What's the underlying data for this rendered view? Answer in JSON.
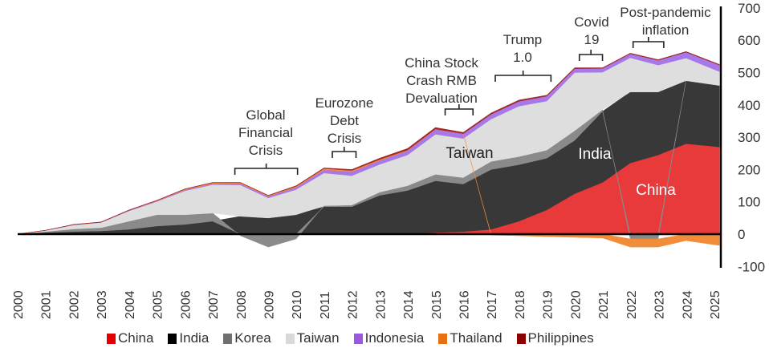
{
  "chart_data": {
    "type": "area",
    "stacked": true,
    "x": [
      2000,
      2001,
      2002,
      2003,
      2004,
      2005,
      2006,
      2007,
      2008,
      2009,
      2010,
      2011,
      2012,
      2013,
      2014,
      2015,
      2016,
      2017,
      2018,
      2019,
      2020,
      2021,
      2022,
      2023,
      2024,
      2025.2
    ],
    "series": [
      {
        "name": "China",
        "color": "#e00000",
        "fill": "#e8393b",
        "values": [
          0,
          0,
          0,
          0,
          0,
          0,
          0,
          0,
          0,
          0,
          0,
          0,
          0,
          0,
          0,
          5,
          8,
          15,
          40,
          75,
          125,
          160,
          220,
          245,
          280,
          270
        ]
      },
      {
        "name": "India",
        "color": "#000000",
        "fill": "#383838",
        "values": [
          0,
          5,
          8,
          10,
          15,
          25,
          30,
          40,
          55,
          50,
          60,
          85,
          85,
          120,
          135,
          160,
          147,
          185,
          175,
          160,
          165,
          220,
          220,
          195,
          195,
          190
        ]
      },
      {
        "name": "Korea",
        "color": "#707070",
        "fill": "#8a8a8a",
        "values": [
          0,
          3,
          8,
          10,
          25,
          35,
          30,
          25,
          -5,
          -40,
          -15,
          3,
          5,
          10,
          15,
          20,
          20,
          25,
          25,
          25,
          30,
          5,
          -15,
          -15,
          0,
          0
        ]
      },
      {
        "name": "Taiwan",
        "color": "#d9d9d9",
        "fill": "#dedede",
        "values": [
          0,
          3,
          12,
          16,
          32,
          41,
          74,
          88,
          97,
          62,
          78,
          101,
          91,
          86,
          95,
          124,
          121,
          131,
          156,
          152,
          180,
          116,
          106,
          83,
          70,
          43
        ]
      },
      {
        "name": "Indonesia",
        "color": "#9b59e0",
        "fill": "#a878e8",
        "values": [
          0,
          1,
          1,
          1,
          2,
          2,
          3,
          3,
          4,
          5,
          7,
          10,
          12,
          12,
          13,
          15,
          15,
          15,
          15,
          15,
          12,
          12,
          12,
          15,
          18,
          20
        ]
      },
      {
        "name": "Thailand",
        "color": "#e87010",
        "fill": "#f08c3a",
        "values": [
          0,
          0,
          0,
          0,
          0,
          1,
          2,
          3,
          3,
          2,
          3,
          4,
          4,
          3,
          2,
          1,
          0,
          -3,
          -5,
          -8,
          -10,
          -12,
          -25,
          -25,
          -20,
          -35
        ]
      },
      {
        "name": "Philippines",
        "color": "#8b0000",
        "fill": "#a02828",
        "values": [
          0,
          0,
          1,
          1,
          1,
          1,
          1,
          1,
          1,
          1,
          2,
          2,
          3,
          4,
          5,
          5,
          4,
          4,
          4,
          3,
          3,
          2,
          2,
          2,
          2,
          2
        ]
      }
    ],
    "x_tick_labels": [
      "2000",
      "2001",
      "2002",
      "2003",
      "2004",
      "2005",
      "2006",
      "2007",
      "2008",
      "2009",
      "2010",
      "2011",
      "2012",
      "2013",
      "2014",
      "2015",
      "2016",
      "2017",
      "2018",
      "2019",
      "2020",
      "2021",
      "2022",
      "2023",
      "2024",
      "2025"
    ],
    "y_tick_labels": [
      "700",
      "600",
      "500",
      "400",
      "300",
      "200",
      "100",
      "0",
      "-100"
    ],
    "ylim": [
      -100,
      700
    ],
    "xlim": [
      2000,
      2025.25
    ],
    "y_axis_position": "right",
    "grid": false,
    "legend_position": "bottom",
    "inline_labels": {
      "taiwan": "Taiwan",
      "india": "India",
      "china": "China"
    },
    "annotations": [
      {
        "lines": [
          "Global",
          "Financial",
          "Crisis"
        ],
        "x_range": [
          2007.8,
          2010.05
        ]
      },
      {
        "lines": [
          "Eurozone",
          "Debt",
          "Crisis"
        ],
        "x_range": [
          2011.3,
          2012.15
        ]
      },
      {
        "lines": [
          "China Stock",
          "Crash RMB",
          "Devaluation"
        ],
        "x_range": [
          2015.35,
          2016.35
        ]
      },
      {
        "lines": [
          "Trump",
          "1.0"
        ],
        "x_range": [
          2017.15,
          2019.15
        ]
      },
      {
        "lines": [
          "Covid",
          "19"
        ],
        "x_range": [
          2020.17,
          2021.0
        ]
      },
      {
        "lines": [
          "Post-pandemic",
          "inflation"
        ],
        "x_range": [
          2022.1,
          2023.2
        ]
      }
    ]
  }
}
